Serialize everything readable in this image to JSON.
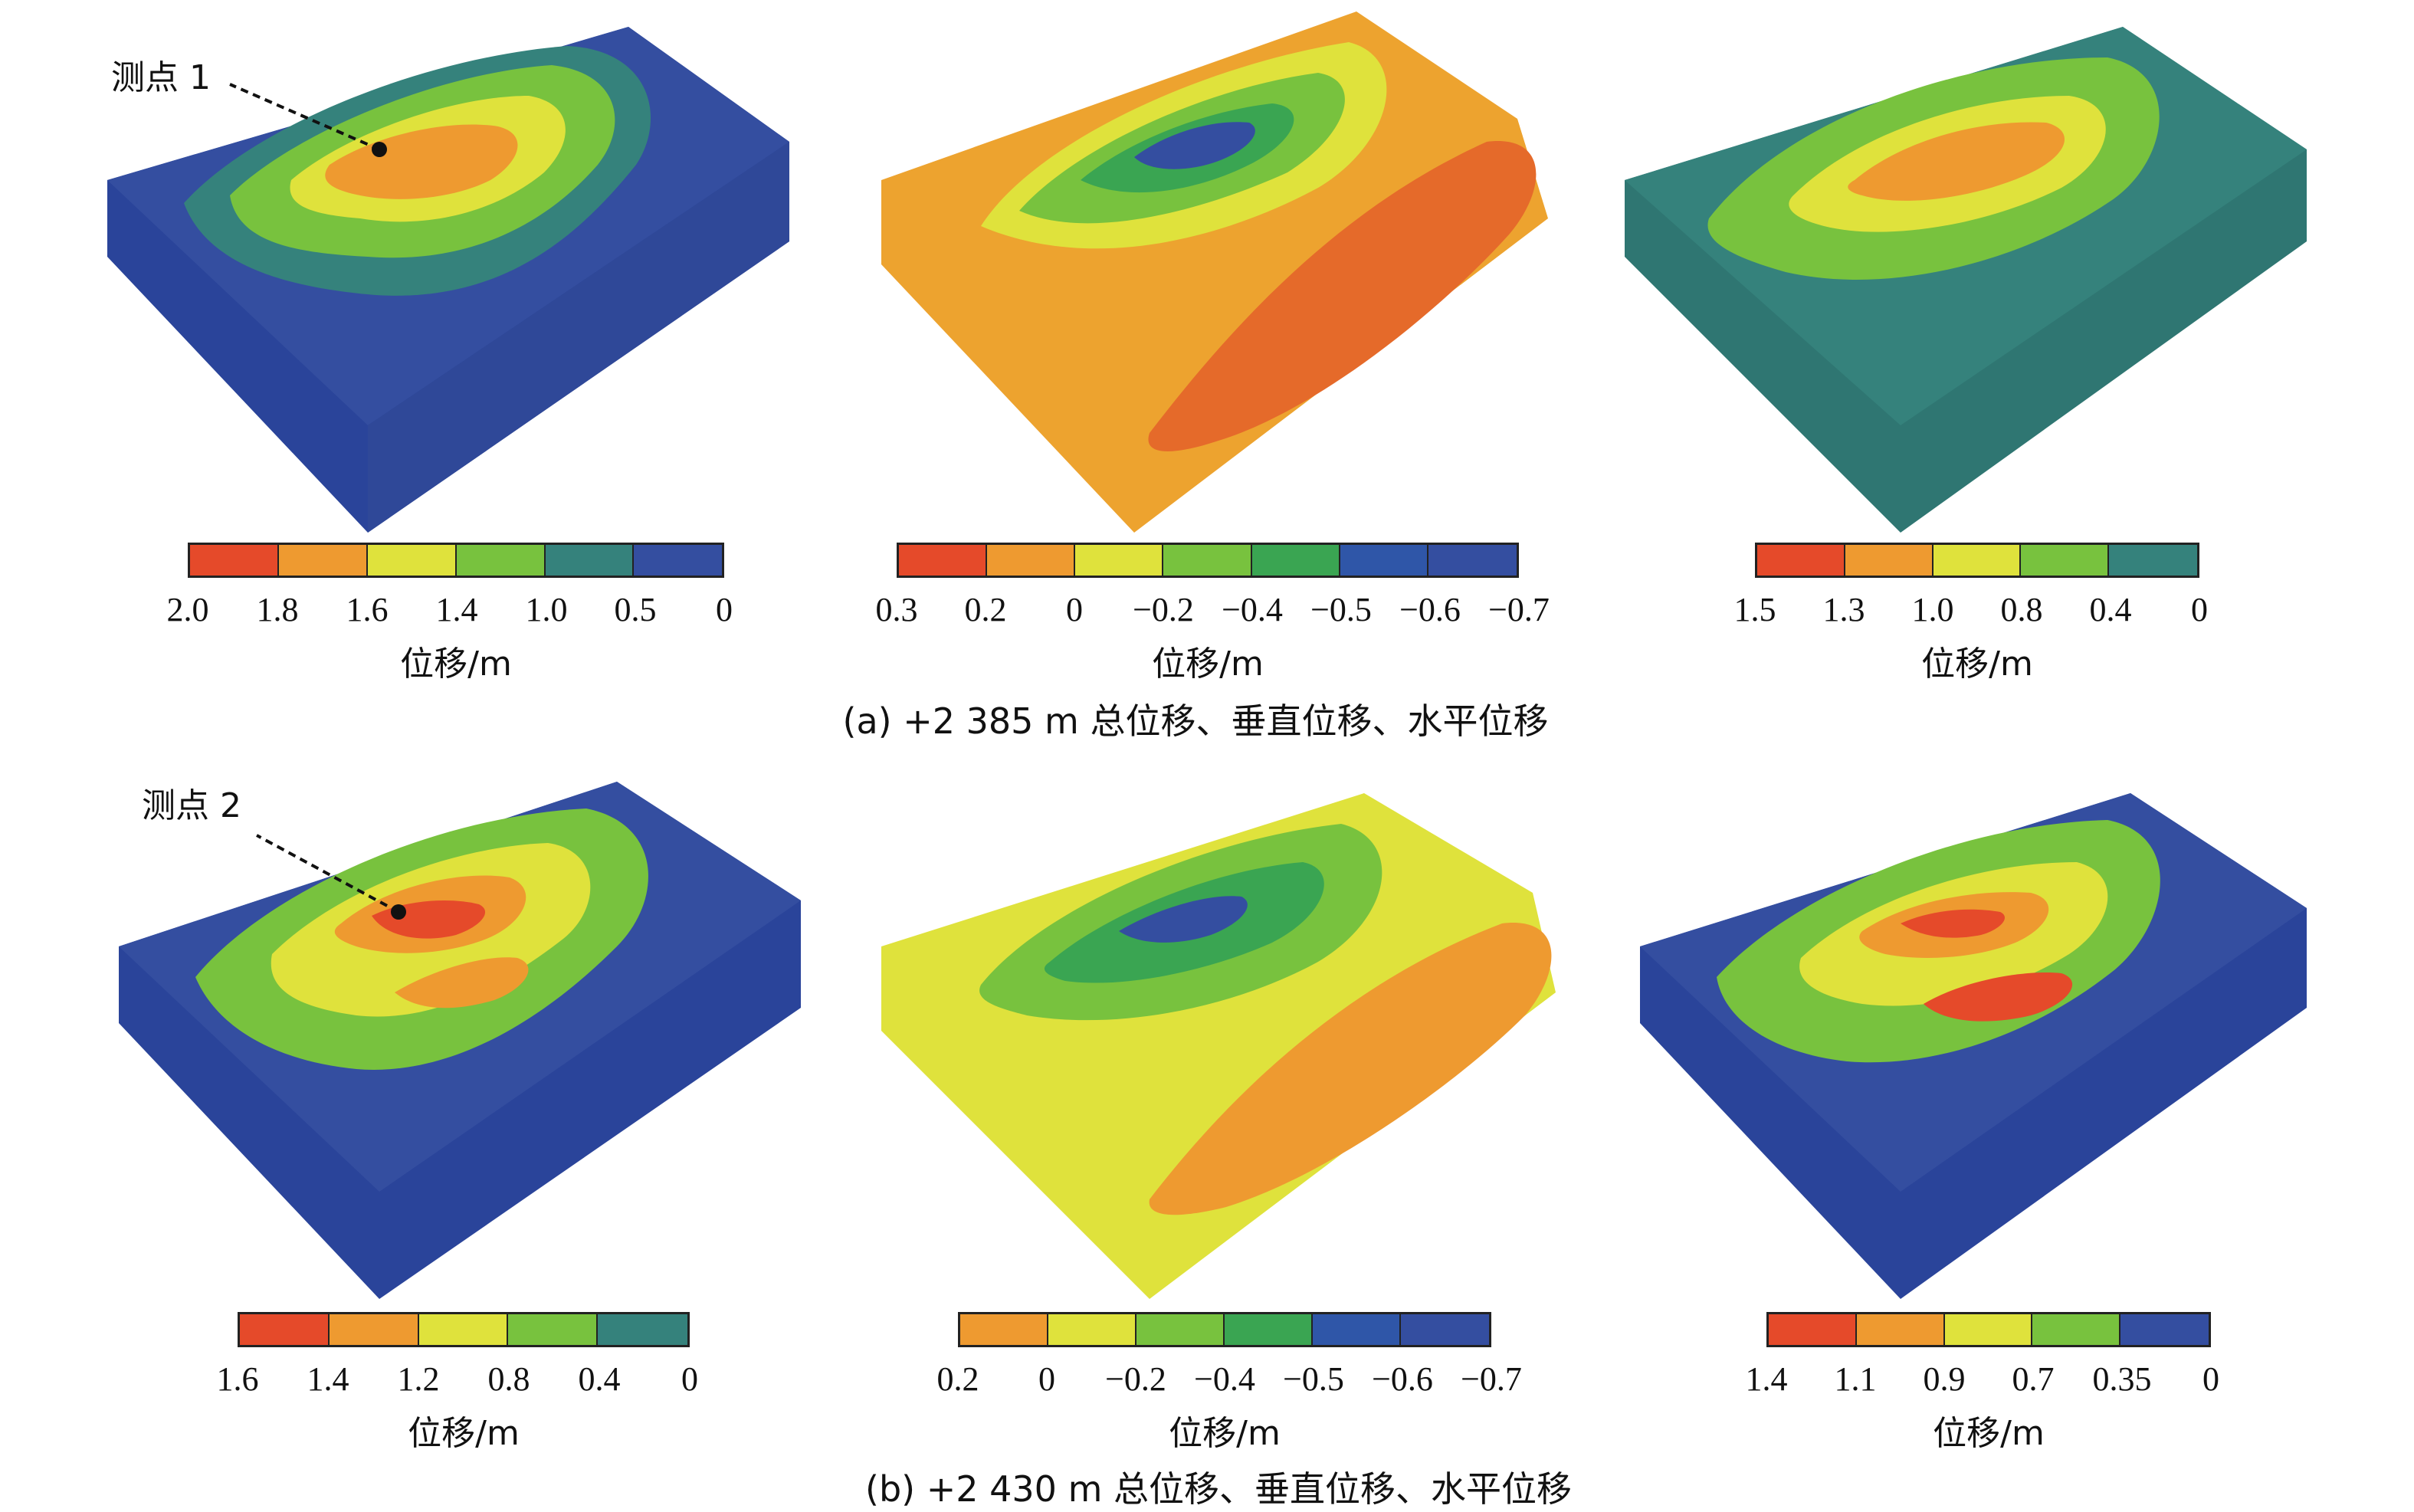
{
  "rows": [
    {
      "caption": "(a) +2 385 m 总位移、垂直位移、水平位移",
      "point_label": "测点 1",
      "panels": [
        {
          "unit": "位移/m",
          "ticks": [
            "2.0",
            "1.8",
            "1.6",
            "1.4",
            "1.0",
            "0.5",
            "0"
          ],
          "colors": [
            "#e54a2a",
            "#ee9a30",
            "#dfe23c",
            "#78c23e",
            "#35827c",
            "#344ea0"
          ],
          "bg": "#344ea0"
        },
        {
          "unit": "位移/m",
          "ticks": [
            "0.3",
            "0.2",
            "0",
            "−0.2",
            "−0.4",
            "−0.5",
            "−0.6",
            "−0.7"
          ],
          "colors": [
            "#e54a2a",
            "#ee9a30",
            "#dfe23c",
            "#78c23e",
            "#3aa552",
            "#2f56a8",
            "#344ea0"
          ],
          "bg": "#eda32f"
        },
        {
          "unit": "位移/m",
          "ticks": [
            "1.5",
            "1.3",
            "1.0",
            "0.8",
            "0.4",
            "0"
          ],
          "colors": [
            "#e54a2a",
            "#ee9a30",
            "#dfe23c",
            "#78c23e",
            "#35827c"
          ],
          "bg": "#35827c"
        }
      ]
    },
    {
      "caption": "(b) +2 430 m 总位移、垂直位移、水平位移",
      "point_label": "测点 2",
      "panels": [
        {
          "unit": "位移/m",
          "ticks": [
            "1.6",
            "1.4",
            "1.2",
            "0.8",
            "0.4",
            "0"
          ],
          "colors": [
            "#e54a2a",
            "#ee9a30",
            "#dfe23c",
            "#78c23e",
            "#35827c"
          ],
          "bg": "#344ea0"
        },
        {
          "unit": "位移/m",
          "ticks": [
            "0.2",
            "0",
            "−0.2",
            "−0.4",
            "−0.5",
            "−0.6",
            "−0.7"
          ],
          "colors": [
            "#ee9a30",
            "#dfe23c",
            "#78c23e",
            "#3aa552",
            "#2f56a8",
            "#344ea0"
          ],
          "bg": "#dfe23c"
        },
        {
          "unit": "位移/m",
          "ticks": [
            "1.4",
            "1.1",
            "0.9",
            "0.7",
            "0.35",
            "0"
          ],
          "colors": [
            "#e54a2a",
            "#ee9a30",
            "#dfe23c",
            "#78c23e",
            "#344ea0"
          ],
          "bg": "#344ea0"
        }
      ]
    }
  ]
}
